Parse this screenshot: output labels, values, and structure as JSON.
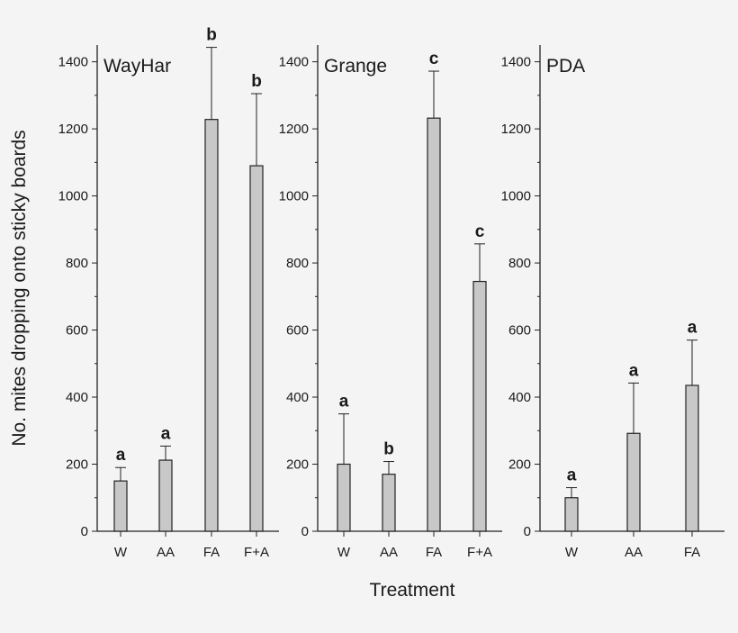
{
  "chart_data": {
    "type": "bar",
    "ylabel": "No. mites dropping onto sticky boards",
    "xlabel": "Treatment",
    "ylim": [
      0,
      1450
    ],
    "yticks": [
      0,
      200,
      400,
      600,
      800,
      1000,
      1200,
      1400
    ],
    "grid": false,
    "bar_color": "#c8c8c8",
    "panels": [
      {
        "title": "WayHar",
        "categories": [
          "W",
          "AA",
          "FA",
          "F+A"
        ],
        "values": [
          150,
          212,
          1228,
          1090
        ],
        "errors": [
          40,
          42,
          215,
          215
        ],
        "significance": [
          "a",
          "a",
          "b",
          "b"
        ]
      },
      {
        "title": "Grange",
        "categories": [
          "W",
          "AA",
          "FA",
          "F+A"
        ],
        "values": [
          200,
          170,
          1232,
          745
        ],
        "errors": [
          150,
          38,
          140,
          112
        ],
        "significance": [
          "a",
          "b",
          "c",
          "c"
        ]
      },
      {
        "title": "PDA",
        "categories": [
          "W",
          "AA",
          "FA"
        ],
        "values": [
          100,
          292,
          435
        ],
        "errors": [
          30,
          150,
          135
        ],
        "significance": [
          "a",
          "a",
          "a"
        ]
      }
    ]
  }
}
